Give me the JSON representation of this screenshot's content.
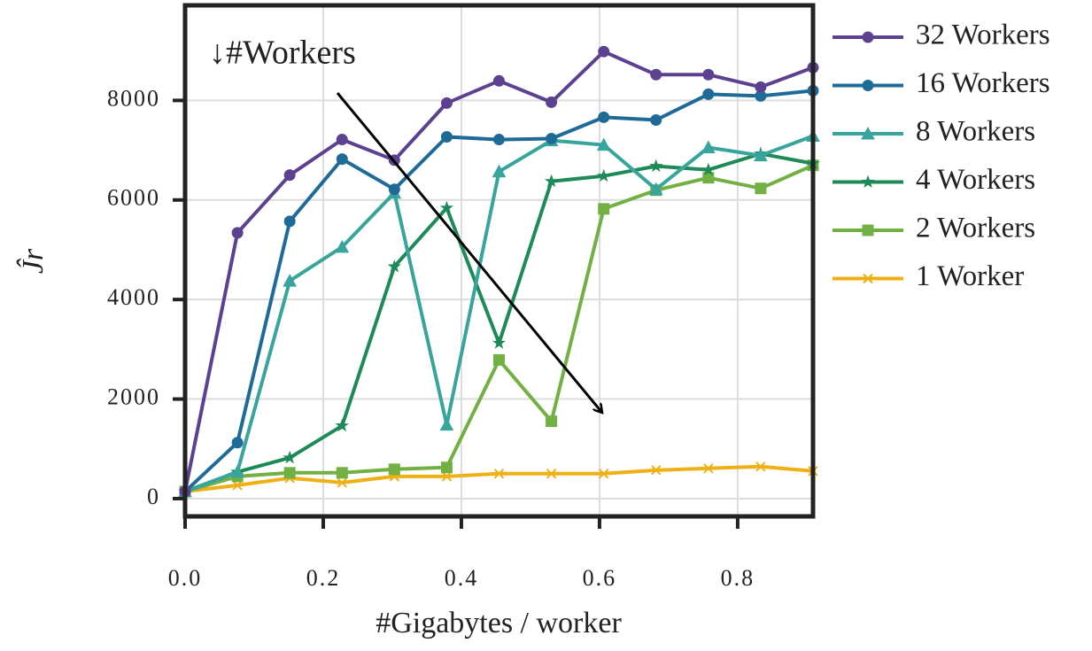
{
  "chart_data": {
    "type": "line",
    "annotation": "↓#Workers",
    "x_label": "#Gigabytes / worker",
    "y_label": "Ĵr",
    "x": [
      0,
      0.0758,
      0.1515,
      0.2273,
      0.303,
      0.3788,
      0.4545,
      0.5303,
      0.6061,
      0.6818,
      0.7576,
      0.8333,
      0.9091
    ],
    "xlim": [
      0,
      0.9091
    ],
    "ylim": [
      -357,
      9911
    ],
    "xticks": [
      {
        "value": 0,
        "label": "0.0"
      },
      0.2,
      0.4,
      0.6,
      0.8
    ],
    "yticks": [
      0,
      2000,
      4000,
      6000,
      8000
    ],
    "grid": true,
    "legend": "outside-right",
    "series": [
      {
        "name": "32 Workers",
        "color": "#5c4191",
        "marker": "circle",
        "values": [
          143,
          5340,
          6500,
          7214,
          6800,
          7946,
          8393,
          7964,
          8982,
          8518,
          8518,
          8268,
          8660
        ]
      },
      {
        "name": "16 Workers",
        "color": "#1f6b97",
        "marker": "circle",
        "values": [
          143,
          1125,
          5571,
          6821,
          6214,
          7268,
          7214,
          7232,
          7661,
          7607,
          8125,
          8089,
          8196
        ]
      },
      {
        "name": "8 Workers",
        "color": "#38a59d",
        "marker": "triangle",
        "values": [
          143,
          536,
          4375,
          5054,
          6143,
          1482,
          6571,
          7196,
          7107,
          6214,
          7054,
          6893,
          7286
        ]
      },
      {
        "name": "4 Workers",
        "color": "#1d8a57",
        "marker": "star",
        "values": [
          143,
          536,
          821,
          1464,
          4661,
          5839,
          3125,
          6375,
          6482,
          6679,
          6607,
          6929,
          6732
        ]
      },
      {
        "name": "2 Workers",
        "color": "#72b044",
        "marker": "square",
        "values": [
          143,
          446,
          518,
          518,
          589,
          625,
          2786,
          1554,
          5821,
          6196,
          6446,
          6232,
          6696
        ]
      },
      {
        "name": "1 Worker",
        "color": "#efb016",
        "marker": "x",
        "values": [
          143,
          268,
          411,
          321,
          446,
          446,
          500,
          500,
          500,
          571,
          607,
          643,
          554
        ]
      }
    ]
  }
}
